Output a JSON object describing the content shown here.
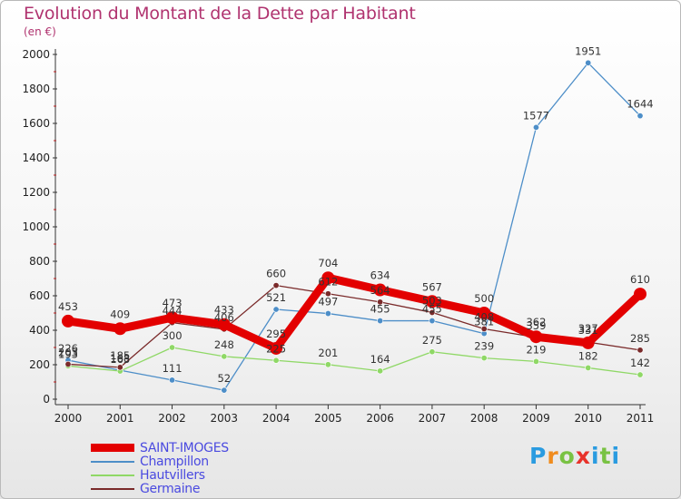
{
  "title": "Evolution du Montant de la Dette par Habitant",
  "subtitle": "(en €)",
  "logo_text": [
    "P",
    "r",
    "o",
    "x",
    "i",
    "t",
    "i"
  ],
  "logo_colors": [
    "#2a9be0",
    "#f08c1e",
    "#79c243",
    "#e8322a",
    "#2a9be0",
    "#79c243",
    "#2a9be0"
  ],
  "chart_data": {
    "type": "line",
    "title": "Evolution du Montant de la Dette par Habitant",
    "subtitle": "(en €)",
    "xlabel": "",
    "ylabel": "",
    "x": [
      "2000",
      "2001",
      "2002",
      "2003",
      "2004",
      "2005",
      "2006",
      "2007",
      "2008",
      "2009",
      "2010",
      "2011"
    ],
    "ylim": [
      0,
      2000
    ],
    "yticks": [
      0,
      200,
      400,
      600,
      800,
      1000,
      1200,
      1400,
      1600,
      1800,
      2000
    ],
    "grid": false,
    "legend_position": "bottom-left",
    "series": [
      {
        "name": "SAINT-IMOGES",
        "color": "#e30000",
        "width": "thick",
        "values": [
          453,
          409,
          473,
          433,
          295,
          704,
          634,
          567,
          500,
          362,
          327,
          610
        ]
      },
      {
        "name": "Champillon",
        "color": "#4d8ec8",
        "width": "thin",
        "values": [
          226,
          168,
          111,
          52,
          521,
          497,
          455,
          455,
          381,
          1577,
          1951,
          1644
        ]
      },
      {
        "name": "Hautvillers",
        "color": "#8fd866",
        "width": "thin",
        "values": [
          193,
          163,
          300,
          248,
          225,
          201,
          164,
          275,
          239,
          219,
          182,
          142
        ]
      },
      {
        "name": "Germaine",
        "color": "#7a2a2a",
        "width": "thin",
        "values": [
          203,
          185,
          444,
          406,
          660,
          612,
          564,
          503,
          408,
          359,
          331,
          285
        ]
      }
    ]
  }
}
